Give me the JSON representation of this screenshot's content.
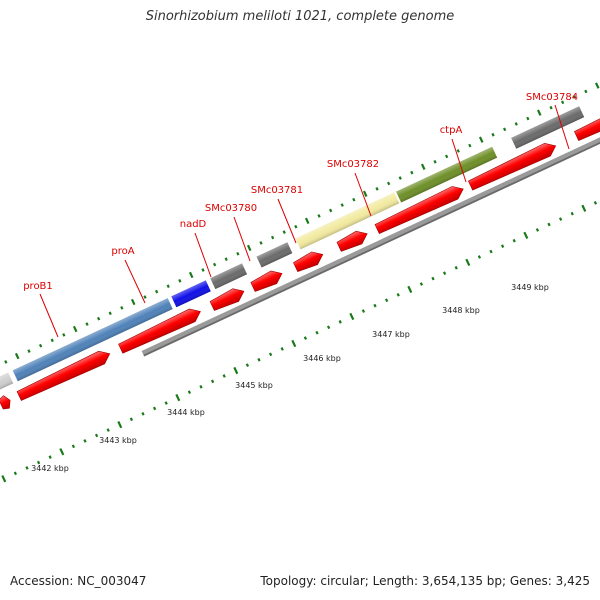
{
  "title": "Sinorhizobium meliloti 1021, complete genome",
  "accession": "Accession: NC_003047",
  "summary": "Topology: circular; Length: 3,654,135 bp; Genes: 3,425",
  "colors": {
    "label": "#dd0000",
    "cds": "#ff0000",
    "tick": "#1a7a1a",
    "backbone": "#999999"
  },
  "genes": [
    {
      "label": "proB1",
      "color": "#4f82b9"
    },
    {
      "label": "proA",
      "color": "#4f82b9"
    },
    {
      "label": "nadD",
      "color": "#1010e8"
    },
    {
      "label": "SMc03780",
      "color": "#6b6b6b"
    },
    {
      "label": "SMc03781",
      "color": "#6b6b6b"
    },
    {
      "label": "SMc03782",
      "color": "#f2eaa0"
    },
    {
      "label": "ctpA",
      "color": "#6e8f28"
    },
    {
      "label": "SMc03784",
      "color": "#6b6b6b"
    }
  ],
  "scale_labels": [
    "3442 kbp",
    "3443 kbp",
    "3444 kbp",
    "3445 kbp",
    "3446 kbp",
    "3447 kbp",
    "3448 kbp",
    "3449 kbp"
  ]
}
